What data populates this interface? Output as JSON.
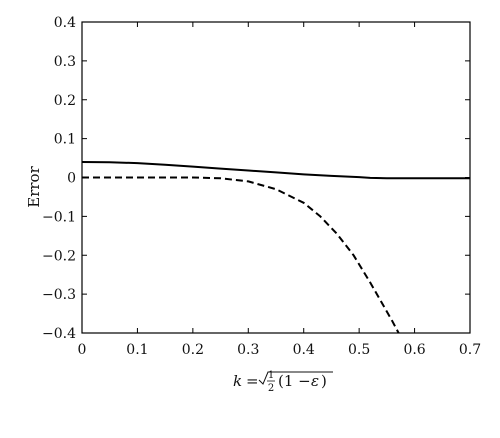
{
  "chart_data": {
    "type": "line",
    "xlabel": {
      "k": "k",
      "equals": "=",
      "frac_num": "1",
      "frac_den": "2",
      "open": "(1 −",
      "eps": "ε",
      "close": ")"
    },
    "ylabel": "Error",
    "xlim": [
      0,
      0.7
    ],
    "ylim": [
      -0.4,
      0.4
    ],
    "xticks": [
      "0",
      "0.1",
      "0.2",
      "0.3",
      "0.4",
      "0.5",
      "0.6",
      "0.7"
    ],
    "yticks": [
      "0.4",
      "0.3",
      "0.2",
      "0.1",
      "0",
      "−0.1",
      "−0.2",
      "−0.3",
      "−0.4"
    ],
    "grid": false,
    "series": [
      {
        "style": "solid",
        "color": "#000000",
        "x": [
          0,
          0.05,
          0.1,
          0.15,
          0.2,
          0.25,
          0.3,
          0.35,
          0.4,
          0.45,
          0.5,
          0.52,
          0.55,
          0.6,
          0.65,
          0.7
        ],
        "y": [
          0.04,
          0.039,
          0.037,
          0.033,
          0.028,
          0.023,
          0.018,
          0.013,
          0.008,
          0.004,
          0.001,
          -0.001,
          -0.002,
          -0.002,
          -0.002,
          -0.002
        ]
      },
      {
        "style": "dashed",
        "color": "#000000",
        "x": [
          0,
          0.05,
          0.1,
          0.15,
          0.2,
          0.25,
          0.3,
          0.35,
          0.4,
          0.43,
          0.46,
          0.49,
          0.52,
          0.54,
          0.56,
          0.575
        ],
        "y": [
          0,
          0,
          0,
          0,
          0,
          -0.002,
          -0.01,
          -0.03,
          -0.065,
          -0.1,
          -0.145,
          -0.2,
          -0.27,
          -0.32,
          -0.37,
          -0.41
        ]
      }
    ]
  }
}
